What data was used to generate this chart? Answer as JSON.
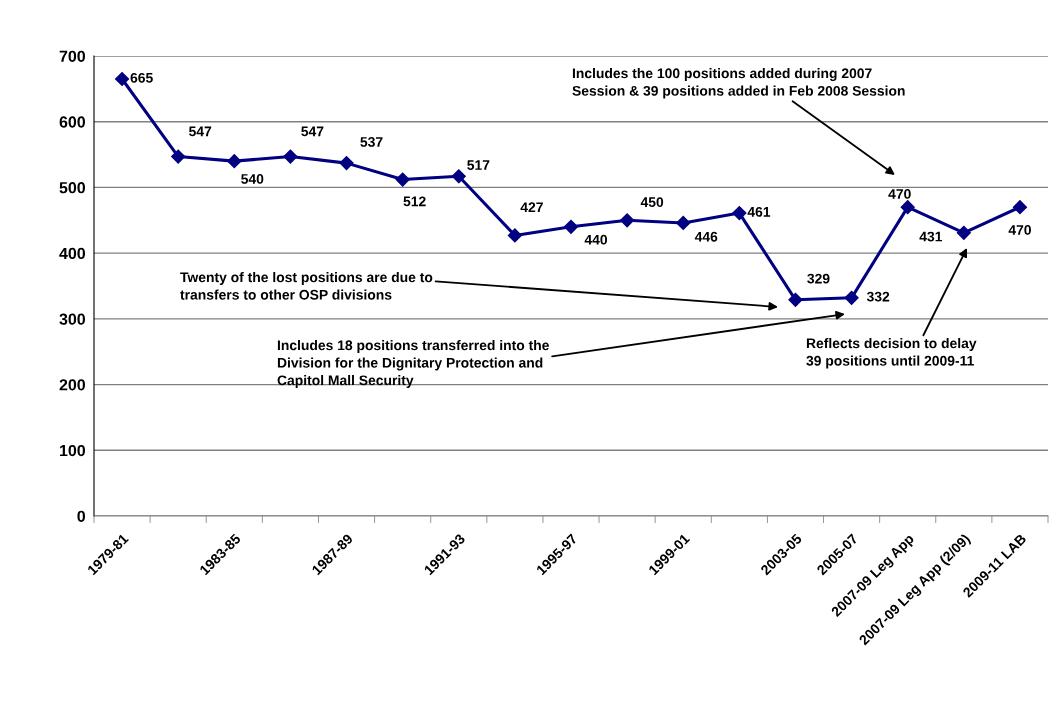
{
  "chart_data": {
    "type": "line",
    "categories": [
      "1979-81",
      null,
      "1983-85",
      null,
      "1987-89",
      null,
      "1991-93",
      null,
      "1995-97",
      null,
      "1999-01",
      null,
      "2003-05",
      "2005-07",
      "2007-09 Leg App",
      "2007-09 Leg App (2/09)",
      "2009-11 LAB"
    ],
    "series": [
      {
        "color": "#000080",
        "values": [
          665,
          547,
          540,
          547,
          537,
          512,
          517,
          427,
          440,
          450,
          446,
          461,
          329,
          332,
          470,
          431,
          470
        ]
      }
    ],
    "ylim": [
      0,
      700
    ],
    "yticks": [
      0,
      100,
      200,
      300,
      400,
      500,
      600,
      700
    ],
    "grid": "y",
    "marker": "diamond",
    "line_style": "solid",
    "data_labels": true,
    "annotations": [
      "Twenty of the lost positions are due to\ntransfers to other OSP divisions",
      "Includes 18 positions transferred into the\nDivision for the Dignitary Protection and\nCapitol Mall Security",
      "Includes the 100 positions added during 2007\nSession & 39 positions added in Feb 2008 Session",
      "Reflects decision to delay\n39 positions until 2009-11"
    ]
  }
}
